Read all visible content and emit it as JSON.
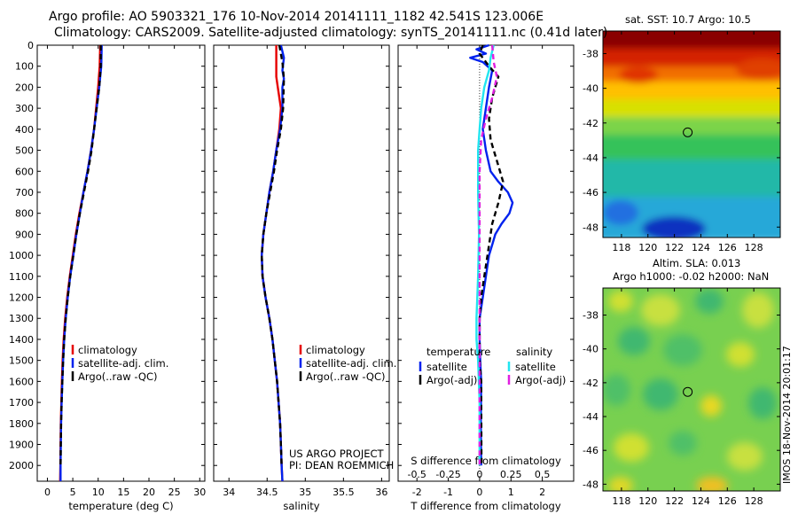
{
  "header": {
    "line1": "Argo profile: AO 5903321_176 10-Nov-2014 20141111_1182 42.541S 123.006E",
    "line2": "Climatology: CARS2009. Satellite-adjusted climatology: synTS_20141111.nc (0.41d later)"
  },
  "side": {
    "sst_title": "sat. SST: 10.7 Argo: 10.5",
    "sla_title1": "Altim. SLA: 0.013",
    "sla_title2": "Argo h1000: -0.02 h2000: NaN",
    "footer_vertical": "IMOS 18-Nov-2014 20:01:17",
    "lat_ticks": [
      "-38",
      "-40",
      "-42",
      "-44",
      "-46",
      "-48"
    ],
    "lon_ticks": [
      "118",
      "120",
      "122",
      "124",
      "126",
      "128"
    ]
  },
  "credits": {
    "line1": "US ARGO PROJECT",
    "line2": "PI: DEAN ROEMMICH"
  },
  "colors": {
    "climatology": "#e60000",
    "satellite": "#0022ee",
    "argo": "#000000",
    "sal_satellite": "#22e5f0",
    "sal_argo": "#e020e0"
  },
  "chart_data": [
    {
      "type": "line",
      "xlabel": "temperature (deg C)",
      "ylabel": "",
      "xlim": [
        -2,
        31
      ],
      "ylim": [
        2075,
        0
      ],
      "x_ticks": [
        0,
        5,
        10,
        15,
        20,
        25,
        30
      ],
      "y_ticks": [
        0,
        100,
        200,
        300,
        400,
        500,
        600,
        700,
        800,
        900,
        1000,
        1100,
        1200,
        1300,
        1400,
        1500,
        1600,
        1700,
        1800,
        1900,
        2000
      ],
      "legend": [
        "climatology",
        "satellite-adj. clim.",
        "Argo(..raw -QC)"
      ],
      "series": [
        {
          "name": "climatology",
          "color": "#e60000",
          "points": [
            [
              10.4,
              0
            ],
            [
              10.3,
              100
            ],
            [
              10.0,
              200
            ],
            [
              9.6,
              300
            ],
            [
              9.2,
              400
            ],
            [
              8.6,
              500
            ],
            [
              7.9,
              600
            ],
            [
              7.1,
              700
            ],
            [
              6.3,
              800
            ],
            [
              5.6,
              900
            ],
            [
              5.0,
              1000
            ],
            [
              4.4,
              1100
            ],
            [
              3.9,
              1200
            ],
            [
              3.5,
              1300
            ],
            [
              3.2,
              1400
            ],
            [
              3.0,
              1500
            ],
            [
              2.85,
              1600
            ],
            [
              2.75,
              1700
            ],
            [
              2.65,
              1800
            ],
            [
              2.6,
              1900
            ],
            [
              2.55,
              2000
            ],
            [
              2.5,
              2075
            ]
          ]
        },
        {
          "name": "satellite-adj. clim.",
          "color": "#0022ee",
          "points": [
            [
              10.7,
              0
            ],
            [
              10.6,
              100
            ],
            [
              10.2,
              200
            ],
            [
              9.7,
              300
            ],
            [
              9.2,
              400
            ],
            [
              8.6,
              500
            ],
            [
              7.9,
              600
            ],
            [
              7.1,
              700
            ],
            [
              6.4,
              800
            ],
            [
              5.7,
              900
            ],
            [
              5.1,
              1000
            ],
            [
              4.5,
              1100
            ],
            [
              4.0,
              1200
            ],
            [
              3.6,
              1300
            ],
            [
              3.3,
              1400
            ],
            [
              3.1,
              1500
            ],
            [
              2.95,
              1600
            ],
            [
              2.8,
              1700
            ],
            [
              2.7,
              1800
            ],
            [
              2.65,
              1900
            ],
            [
              2.6,
              2000
            ],
            [
              2.6,
              2075
            ]
          ]
        },
        {
          "name": "Argo(..raw -QC)",
          "color": "#000000",
          "dash": true,
          "points": [
            [
              10.5,
              0
            ],
            [
              10.5,
              100
            ],
            [
              10.2,
              200
            ],
            [
              9.7,
              300
            ],
            [
              9.2,
              400
            ],
            [
              8.7,
              500
            ],
            [
              8.0,
              600
            ],
            [
              7.2,
              700
            ],
            [
              6.4,
              800
            ],
            [
              5.7,
              900
            ],
            [
              5.1,
              1000
            ],
            [
              4.5,
              1100
            ],
            [
              4.0,
              1200
            ],
            [
              3.6,
              1300
            ],
            [
              3.3,
              1400
            ],
            [
              3.1,
              1500
            ],
            [
              2.95,
              1600
            ],
            [
              2.8,
              1700
            ],
            [
              2.7,
              1800
            ],
            [
              2.65,
              1900
            ],
            [
              2.6,
              2000
            ]
          ]
        }
      ]
    },
    {
      "type": "line",
      "xlabel": "salinity",
      "ylabel": "",
      "xlim": [
        33.8,
        36.1
      ],
      "ylim": [
        2075,
        0
      ],
      "x_ticks": [
        34,
        34.5,
        35,
        35.5,
        36
      ],
      "legend": [
        "climatology",
        "satellite-adj. clim.",
        "Argo(..raw -QC)"
      ],
      "series": [
        {
          "name": "climatology",
          "color": "#e60000",
          "points": [
            [
              34.62,
              0
            ],
            [
              34.62,
              150
            ],
            [
              34.64,
              200
            ],
            [
              34.68,
              300
            ],
            [
              34.66,
              400
            ],
            [
              34.62,
              500
            ],
            [
              34.58,
              600
            ],
            [
              34.53,
              700
            ],
            [
              34.49,
              800
            ],
            [
              34.45,
              900
            ],
            [
              34.43,
              1000
            ],
            [
              34.44,
              1100
            ],
            [
              34.48,
              1200
            ],
            [
              34.53,
              1300
            ],
            [
              34.57,
              1400
            ],
            [
              34.6,
              1500
            ],
            [
              34.63,
              1600
            ],
            [
              34.65,
              1700
            ],
            [
              34.67,
              1800
            ],
            [
              34.68,
              1900
            ],
            [
              34.69,
              2000
            ],
            [
              34.7,
              2075
            ]
          ]
        },
        {
          "name": "satellite-adj. clim.",
          "color": "#0022ee",
          "points": [
            [
              34.68,
              0
            ],
            [
              34.72,
              60
            ],
            [
              34.7,
              120
            ],
            [
              34.72,
              160
            ],
            [
              34.7,
              200
            ],
            [
              34.7,
              300
            ],
            [
              34.67,
              400
            ],
            [
              34.62,
              500
            ],
            [
              34.58,
              600
            ],
            [
              34.53,
              700
            ],
            [
              34.49,
              800
            ],
            [
              34.45,
              900
            ],
            [
              34.43,
              1000
            ],
            [
              34.44,
              1100
            ],
            [
              34.48,
              1200
            ],
            [
              34.53,
              1300
            ],
            [
              34.57,
              1400
            ],
            [
              34.6,
              1500
            ],
            [
              34.63,
              1600
            ],
            [
              34.65,
              1700
            ],
            [
              34.67,
              1800
            ],
            [
              34.68,
              1900
            ],
            [
              34.69,
              2000
            ],
            [
              34.7,
              2075
            ]
          ]
        },
        {
          "name": "Argo(..raw -QC)",
          "color": "#000000",
          "dash": true,
          "points": [
            [
              34.66,
              0
            ],
            [
              34.7,
              80
            ],
            [
              34.72,
              160
            ],
            [
              34.71,
              300
            ],
            [
              34.68,
              400
            ],
            [
              34.63,
              500
            ],
            [
              34.59,
              600
            ],
            [
              34.54,
              700
            ],
            [
              34.49,
              800
            ],
            [
              34.45,
              900
            ],
            [
              34.43,
              1000
            ],
            [
              34.44,
              1100
            ],
            [
              34.48,
              1200
            ],
            [
              34.53,
              1300
            ],
            [
              34.57,
              1400
            ],
            [
              34.6,
              1500
            ],
            [
              34.63,
              1600
            ],
            [
              34.65,
              1700
            ],
            [
              34.67,
              1800
            ],
            [
              34.68,
              1900
            ],
            [
              34.69,
              2000
            ]
          ]
        }
      ]
    },
    {
      "type": "line",
      "xlabel": "T difference from climatology",
      "x2label": "S difference from climatology",
      "ylabel": "",
      "xlim": [
        -2.6,
        3.0
      ],
      "ylim": [
        2075,
        0
      ],
      "x_ticks": [
        -2,
        -1,
        0,
        1,
        2
      ],
      "x2_tick_labels": [
        "-0.5",
        "-0.25",
        "0",
        "0.25",
        "0.5"
      ],
      "x2_scale": 0.25,
      "legend_titles": [
        "temperature",
        "salinity"
      ],
      "legend": [
        "satellite",
        "Argo(-adj)",
        "satellite",
        "Argo(-adj)"
      ],
      "series": [
        {
          "name": "satellite",
          "group": "temperature",
          "color": "#0022ee",
          "points": [
            [
              0.3,
              0
            ],
            [
              -0.1,
              20
            ],
            [
              0.2,
              40
            ],
            [
              -0.3,
              60
            ],
            [
              0.1,
              80
            ],
            [
              0.4,
              120
            ],
            [
              0.3,
              200
            ],
            [
              0.2,
              300
            ],
            [
              0.1,
              400
            ],
            [
              0.2,
              500
            ],
            [
              0.35,
              600
            ],
            [
              0.6,
              650
            ],
            [
              0.9,
              700
            ],
            [
              1.05,
              750
            ],
            [
              0.95,
              800
            ],
            [
              0.7,
              850
            ],
            [
              0.5,
              900
            ],
            [
              0.4,
              950
            ],
            [
              0.3,
              1000
            ],
            [
              0.2,
              1100
            ],
            [
              0.1,
              1200
            ],
            [
              0.0,
              1300
            ],
            [
              0.0,
              1400
            ],
            [
              0.02,
              1500
            ],
            [
              0.05,
              1600
            ],
            [
              0.04,
              1800
            ],
            [
              0.05,
              2000
            ]
          ]
        },
        {
          "name": "Argo(-adj)",
          "group": "temperature",
          "color": "#000000",
          "dash": true,
          "points": [
            [
              0.1,
              0
            ],
            [
              0.0,
              40
            ],
            [
              0.3,
              100
            ],
            [
              0.6,
              150
            ],
            [
              0.4,
              250
            ],
            [
              0.3,
              350
            ],
            [
              0.35,
              450
            ],
            [
              0.55,
              550
            ],
            [
              0.75,
              650
            ],
            [
              0.6,
              750
            ],
            [
              0.4,
              850
            ],
            [
              0.25,
              1000
            ],
            [
              0.15,
              1100
            ],
            [
              0.05,
              1200
            ],
            [
              0.0,
              1300
            ],
            [
              0.0,
              1500
            ],
            [
              0.05,
              1600
            ],
            [
              0.06,
              2000
            ]
          ]
        },
        {
          "name": "satellite",
          "group": "salinity",
          "color": "#22e5f0",
          "points": [
            [
              0.45,
              0
            ],
            [
              0.35,
              60
            ],
            [
              0.3,
              120
            ],
            [
              0.15,
              200
            ],
            [
              0.05,
              300
            ],
            [
              0.0,
              400
            ],
            [
              -0.05,
              500
            ],
            [
              -0.05,
              700
            ],
            [
              -0.02,
              900
            ],
            [
              -0.05,
              1100
            ],
            [
              -0.1,
              1300
            ],
            [
              -0.1,
              1400
            ],
            [
              -0.05,
              1500
            ],
            [
              0.0,
              1700
            ],
            [
              0.0,
              1900
            ],
            [
              0.0,
              2000
            ]
          ]
        },
        {
          "name": "Argo(-adj)",
          "group": "salinity",
          "color": "#e020e0",
          "dash": true,
          "points": [
            [
              0.4,
              0
            ],
            [
              0.45,
              80
            ],
            [
              0.55,
              150
            ],
            [
              0.4,
              250
            ],
            [
              0.2,
              350
            ],
            [
              0.05,
              450
            ],
            [
              0.0,
              600
            ],
            [
              0.0,
              900
            ],
            [
              0.0,
              1200
            ],
            [
              0.0,
              1500
            ],
            [
              0.0,
              1800
            ],
            [
              0.0,
              2000
            ]
          ]
        }
      ]
    }
  ]
}
